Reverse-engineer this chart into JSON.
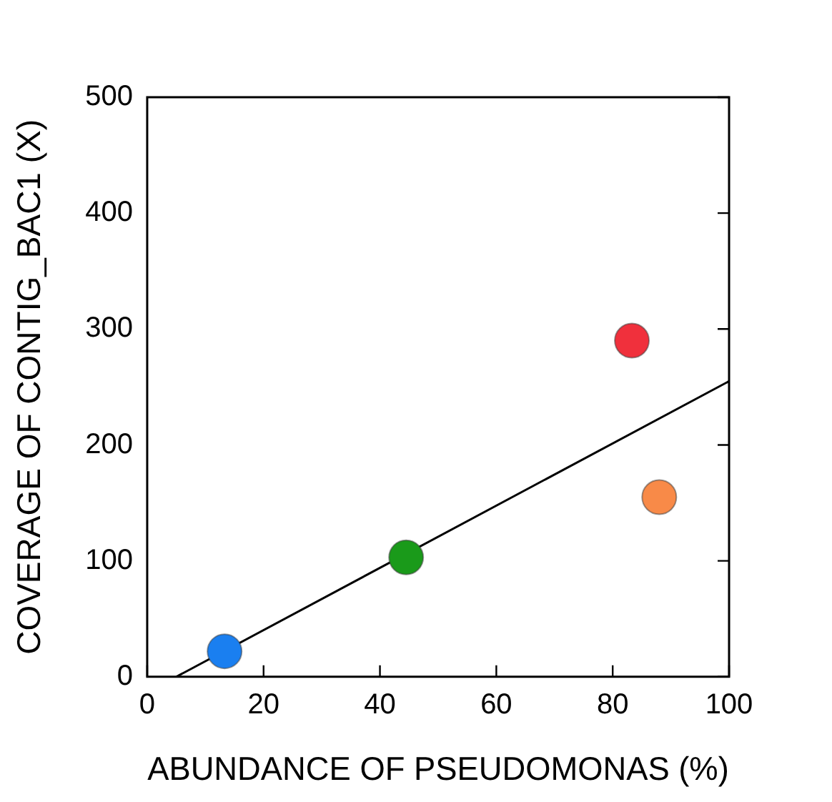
{
  "chart_data": {
    "type": "scatter",
    "xlabel": "ABUNDANCE OF PSEUDOMONAS (%)",
    "ylabel": "COVERAGE OF CONTIG_BAC1 (X)",
    "xlim": [
      0,
      100
    ],
    "xticks": [
      0,
      20,
      40,
      60,
      80,
      100
    ],
    "ylim": [
      0,
      500
    ],
    "yticks": [
      0,
      100,
      200,
      300,
      400,
      500
    ],
    "grid": false,
    "legend": false,
    "marker": "circle",
    "series": [
      {
        "x": [
          13.3,
          44.5,
          83.3,
          88
        ],
        "values": [
          22,
          103,
          290,
          155
        ],
        "colors": [
          "#1a7ff0",
          "#1a9a1a",
          "#f0303c",
          "#f88a48"
        ]
      },
      {
        "type": "line",
        "x": [
          5,
          100
        ],
        "values": [
          0,
          255
        ],
        "color": "#000000",
        "marker": "none",
        "line_style": "solid"
      }
    ]
  }
}
